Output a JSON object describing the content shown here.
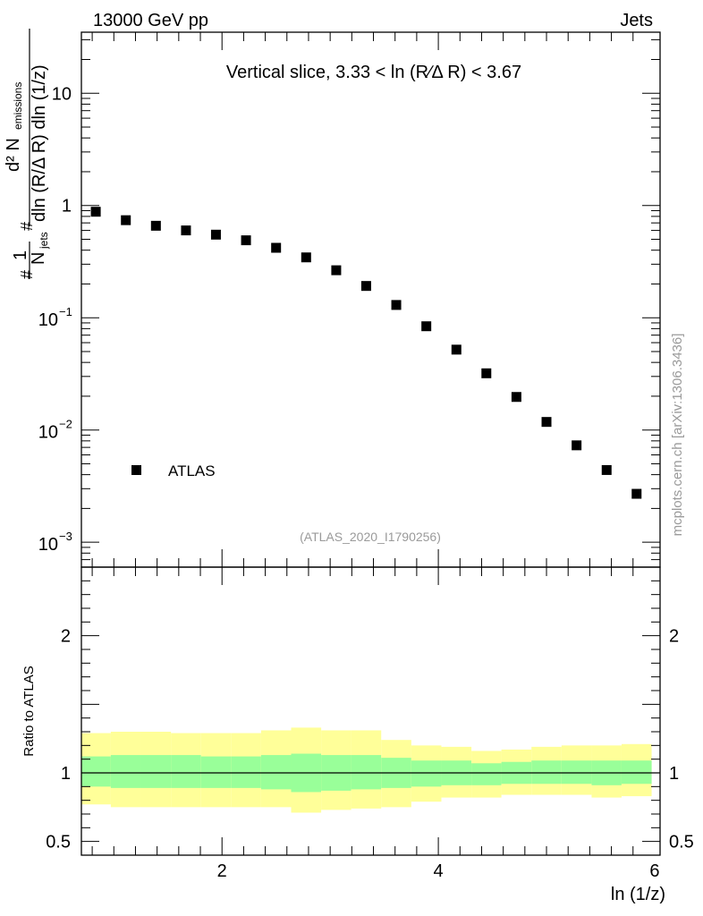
{
  "header": {
    "left": "13000 GeV pp",
    "right": "Jets"
  },
  "watermark": "mcplots.cern.ch [arXiv:1306.3436]",
  "analysis_tag": "(ATLAS_2020_I1790256)",
  "y_label_main": {
    "hash1": "#",
    "one": "1",
    "njets_N": "N",
    "njets_sub": "jets",
    "hash2": "#",
    "d2": "d² N",
    "emissions": "emissions",
    "denominator": "dln (R/Δ R) dln (1/z)"
  },
  "y_label_ratio": "Ratio to ATLAS",
  "x_label": "ln (1/z)",
  "y_ticks_main": [
    {
      "value": 10,
      "label": "10"
    },
    {
      "value": 1,
      "label": "1"
    },
    {
      "value": 0.1,
      "base": "10",
      "exp": "−1"
    },
    {
      "value": 0.01,
      "base": "10",
      "exp": "−2"
    },
    {
      "value": 0.001,
      "base": "10",
      "exp": "−3"
    }
  ],
  "ratio_ticks": [
    {
      "value": 2,
      "label": "2"
    },
    {
      "value": 1,
      "label": "1"
    },
    {
      "value": 0.5,
      "label": "0.5"
    }
  ],
  "x_ticks": [
    {
      "value": 2,
      "label": "2"
    },
    {
      "value": 4,
      "label": "4"
    },
    {
      "value": 6,
      "label": "6"
    }
  ],
  "colors": {
    "outer_band": "#ffff99",
    "inner_band": "#99ff99",
    "marker": "#000000"
  },
  "chart_data": {
    "type": "scatter",
    "title": "Vertical slice, 3.33 < ln (R∕Δ R) < 3.67",
    "xlabel": "ln (1/z)",
    "ylabel": "1/N_jets d²N_emissions / dln(R/ΔR) dln(1/z)",
    "xlim": [
      0.7,
      6.05
    ],
    "ylim": [
      0.0006,
      35
    ],
    "yscale": "log",
    "ratio_ylim": [
      0.4,
      2.5
    ],
    "legend": {
      "label": "ATLAS",
      "position": "bottom-left"
    },
    "series": [
      {
        "name": "ATLAS",
        "x": [
          0.833,
          1.111,
          1.389,
          1.667,
          1.944,
          2.222,
          2.5,
          2.778,
          3.056,
          3.333,
          3.611,
          3.889,
          4.167,
          4.444,
          4.722,
          5.0,
          5.278,
          5.556,
          5.833
        ],
        "y": [
          0.88,
          0.74,
          0.66,
          0.6,
          0.55,
          0.49,
          0.42,
          0.345,
          0.265,
          0.192,
          0.13,
          0.084,
          0.052,
          0.032,
          0.0197,
          0.0118,
          0.0073,
          0.0044,
          0.0027
        ]
      }
    ],
    "ratio_bands": {
      "edges": [
        0.7,
        0.972,
        1.25,
        1.528,
        1.806,
        2.083,
        2.361,
        2.639,
        2.917,
        3.194,
        3.472,
        3.75,
        4.028,
        4.306,
        4.583,
        4.861,
        5.139,
        5.417,
        5.694,
        5.972
      ],
      "outer_low": [
        0.77,
        0.75,
        0.75,
        0.75,
        0.75,
        0.75,
        0.75,
        0.71,
        0.73,
        0.74,
        0.75,
        0.79,
        0.82,
        0.82,
        0.84,
        0.84,
        0.84,
        0.82,
        0.83
      ],
      "outer_high": [
        1.29,
        1.3,
        1.3,
        1.29,
        1.29,
        1.29,
        1.31,
        1.33,
        1.31,
        1.31,
        1.24,
        1.2,
        1.19,
        1.16,
        1.17,
        1.19,
        1.2,
        1.2,
        1.21
      ],
      "inner_low": [
        0.9,
        0.89,
        0.89,
        0.89,
        0.89,
        0.89,
        0.88,
        0.86,
        0.87,
        0.88,
        0.89,
        0.9,
        0.91,
        0.91,
        0.92,
        0.92,
        0.92,
        0.91,
        0.92
      ],
      "inner_high": [
        1.12,
        1.13,
        1.13,
        1.13,
        1.12,
        1.12,
        1.13,
        1.14,
        1.13,
        1.13,
        1.11,
        1.09,
        1.09,
        1.07,
        1.08,
        1.09,
        1.09,
        1.09,
        1.09
      ]
    }
  }
}
